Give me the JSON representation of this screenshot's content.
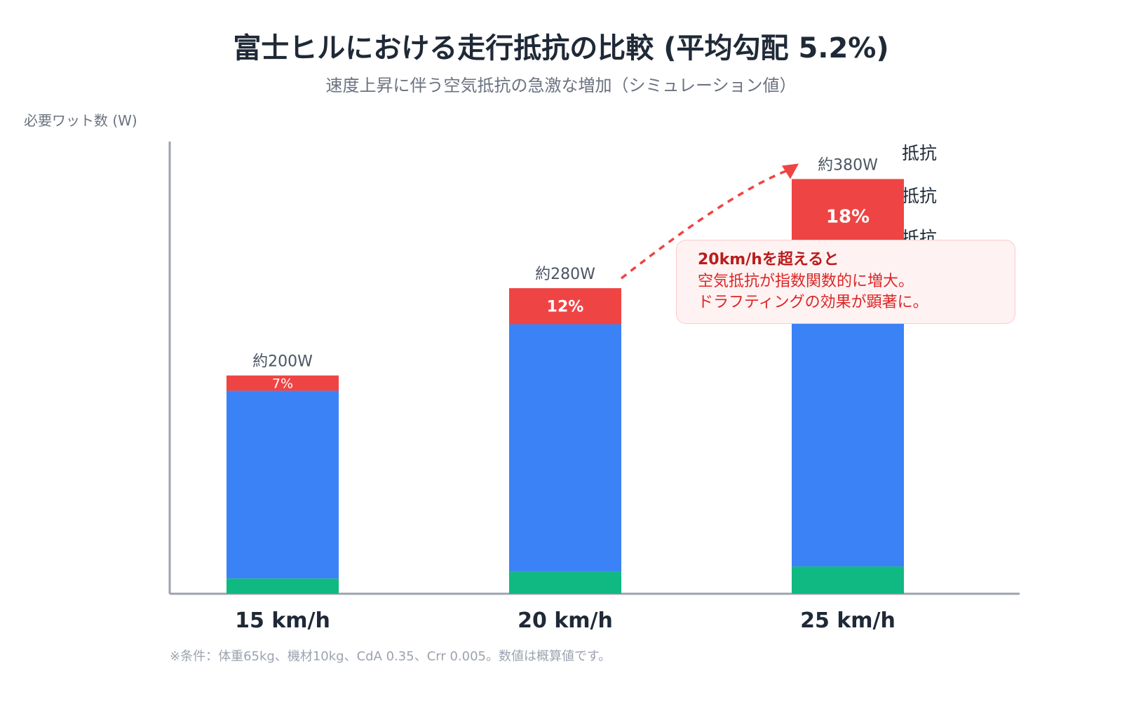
{
  "chart_data": {
    "type": "bar",
    "stacked": true,
    "title": "富士ヒルにおける走行抵抗の比較 (平均勾配 5.2%)",
    "subtitle": "速度上昇に伴う空気抵抗の急激な増加（シミュレーション値）",
    "ylabel": "必要ワット数 (W)",
    "ylim": [
      0,
      440
    ],
    "grid": false,
    "categories": [
      "15 km/h",
      "20 km/h",
      "25 km/h"
    ],
    "totals": [
      200,
      280,
      380
    ],
    "total_labels": [
      "約200W",
      "約280W",
      "約380W"
    ],
    "series": [
      {
        "key": "rolling",
        "color": "#10b981",
        "values": [
          14,
          20,
          25
        ]
      },
      {
        "key": "gravity",
        "color": "#3b82f6",
        "values": [
          172,
          227,
          287
        ]
      },
      {
        "key": "air",
        "color": "#ef4444",
        "values": [
          14,
          33,
          68
        ],
        "labels": [
          "7%",
          "12%",
          "18%"
        ]
      }
    ],
    "legend_partial": {
      "placement": "right",
      "items": [
        "抵抗",
        "抵抗",
        "D 抵抗"
      ]
    }
  },
  "callout": {
    "title": "20km/hを超えると",
    "body": "空気抵抗が指数関数的に増大。\nドラフティングの効果が顕著に。"
  },
  "footnote": "※条件：体重65kg、機材10kg、CdA 0.35、Crr 0.005。数値は概算値です。",
  "colors": {
    "text": "#1f2937",
    "muted": "#6b7280",
    "axis": "#9ca3af",
    "accent": "#ef4444"
  }
}
